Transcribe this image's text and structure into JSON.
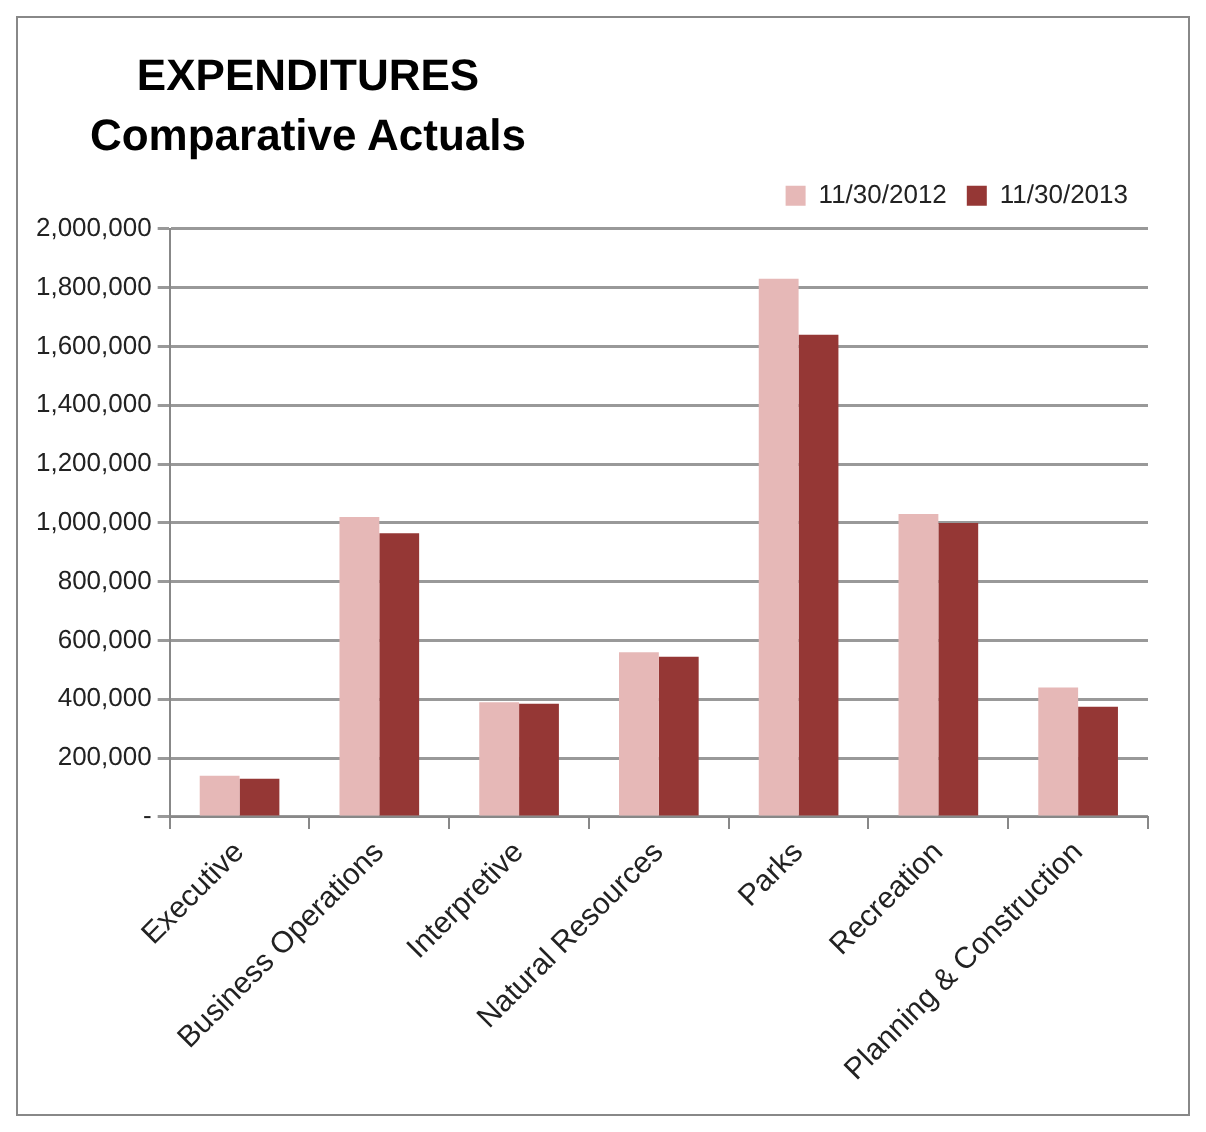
{
  "chart_data": {
    "type": "bar",
    "title": "EXPENDITURES",
    "subtitle": "Comparative Actuals",
    "categories": [
      "Executive",
      "Business Operations",
      "Interpretive",
      "Natural Resources",
      "Parks",
      "Recreation",
      "Planning & Construction"
    ],
    "series": [
      {
        "name": "11/30/2012",
        "color": "#e6b8b7",
        "values": [
          140000,
          1020000,
          390000,
          560000,
          1830000,
          1030000,
          440000
        ]
      },
      {
        "name": "11/30/2013",
        "color": "#953735",
        "values": [
          130000,
          965000,
          385000,
          545000,
          1640000,
          1000000,
          375000
        ]
      }
    ],
    "ylim": [
      0,
      2000000
    ],
    "yticks": [
      {
        "value": 0,
        "label": "-"
      },
      {
        "value": 200000,
        "label": "200,000"
      },
      {
        "value": 400000,
        "label": "400,000"
      },
      {
        "value": 600000,
        "label": "600,000"
      },
      {
        "value": 800000,
        "label": "800,000"
      },
      {
        "value": 1000000,
        "label": "1,000,000"
      },
      {
        "value": 1200000,
        "label": "1,200,000"
      },
      {
        "value": 1400000,
        "label": "1,400,000"
      },
      {
        "value": 1600000,
        "label": "1,600,000"
      },
      {
        "value": 1800000,
        "label": "1,800,000"
      },
      {
        "value": 2000000,
        "label": "2,000,000"
      }
    ],
    "grid": "y",
    "legend": "top right"
  }
}
